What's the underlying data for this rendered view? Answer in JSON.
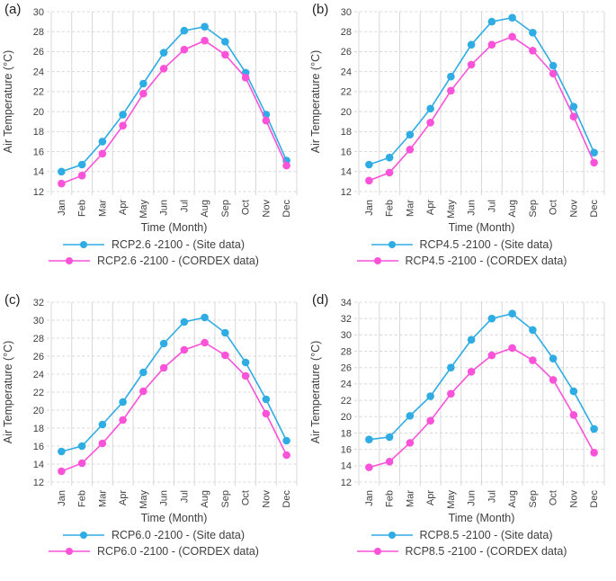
{
  "figure": {
    "xlabel": "Time (Month)",
    "ylabel": "Air Temperature (°C)",
    "months": [
      "Jan",
      "Feb",
      "Mar",
      "Apr",
      "May",
      "Jun",
      "Jul",
      "Aug",
      "Sep",
      "Oct",
      "Nov",
      "Dec"
    ],
    "colors": {
      "site_series": "#2EACE3",
      "cordex_series": "#FA52D9",
      "gridline": "#D8D8D8",
      "text": "#3F3F3F"
    }
  },
  "chart_data": [
    {
      "type": "line",
      "panel_label": "(a)",
      "xlabel": "Time (Month)",
      "ylabel": "Air Temperature (°C)",
      "categories": [
        "Jan",
        "Feb",
        "Mar",
        "Apr",
        "May",
        "Jun",
        "Jul",
        "Aug",
        "Sep",
        "Oct",
        "Nov",
        "Dec"
      ],
      "ylim": [
        12,
        30
      ],
      "ytick_step": 2,
      "grid": true,
      "legend_position": "bottom",
      "series": [
        {
          "name": "RCP2.6 -2100 - (Site data)",
          "color_key": "site_series",
          "color": "#2EACE3",
          "values": [
            14.0,
            14.7,
            17.0,
            19.7,
            22.8,
            25.9,
            28.1,
            28.5,
            27.0,
            23.9,
            19.7,
            15.1
          ]
        },
        {
          "name": "RCP2.6 -2100 - (CORDEX data)",
          "color_key": "cordex_series",
          "color": "#FA52D9",
          "values": [
            12.8,
            13.6,
            15.8,
            18.6,
            21.8,
            24.3,
            26.2,
            27.1,
            25.7,
            23.4,
            19.1,
            14.6
          ]
        }
      ]
    },
    {
      "type": "line",
      "panel_label": "(b)",
      "xlabel": "Time (Month)",
      "ylabel": "Air Temperature (°C)",
      "categories": [
        "Jan",
        "Feb",
        "Mar",
        "Apr",
        "May",
        "Jun",
        "Jul",
        "Aug",
        "Sep",
        "Oct",
        "Nov",
        "Dec"
      ],
      "ylim": [
        12,
        30
      ],
      "ytick_step": 2,
      "grid": true,
      "legend_position": "bottom",
      "series": [
        {
          "name": "RCP4.5 -2100 - (Site data)",
          "color_key": "site_series",
          "color": "#2EACE3",
          "values": [
            14.7,
            15.4,
            17.7,
            20.3,
            23.5,
            26.7,
            29.0,
            29.4,
            27.9,
            24.6,
            20.5,
            15.9
          ]
        },
        {
          "name": "RCP4.5 -2100 - (CORDEX data)",
          "color_key": "cordex_series",
          "color": "#FA52D9",
          "values": [
            13.1,
            13.9,
            16.2,
            18.9,
            22.1,
            24.7,
            26.7,
            27.5,
            26.1,
            23.8,
            19.5,
            14.9
          ]
        }
      ]
    },
    {
      "type": "line",
      "panel_label": "(c)",
      "xlabel": "Time (Month)",
      "ylabel": "Air Temperature (°C)",
      "categories": [
        "Jan",
        "Feb",
        "Mar",
        "Apr",
        "May",
        "Jun",
        "Jul",
        "Aug",
        "Sep",
        "Oct",
        "Nov",
        "Dec"
      ],
      "ylim": [
        12,
        32
      ],
      "ytick_step": 2,
      "grid": true,
      "legend_position": "bottom",
      "series": [
        {
          "name": "RCP6.0 -2100 - (Site data)",
          "color_key": "site_series",
          "color": "#2EACE3",
          "values": [
            15.4,
            16.0,
            18.4,
            20.9,
            24.2,
            27.4,
            29.8,
            30.3,
            28.6,
            25.3,
            21.2,
            16.6
          ]
        },
        {
          "name": "RCP6.0 -2100 - (CORDEX data)",
          "color_key": "cordex_series",
          "color": "#FA52D9",
          "values": [
            13.2,
            14.1,
            16.3,
            18.9,
            22.1,
            24.7,
            26.7,
            27.5,
            26.1,
            23.8,
            19.6,
            15.0
          ]
        }
      ]
    },
    {
      "type": "line",
      "panel_label": "(d)",
      "xlabel": "Time (Month)",
      "ylabel": "Air Temperature (°C)",
      "categories": [
        "Jan",
        "Feb",
        "Mar",
        "Apr",
        "May",
        "Jun",
        "Jul",
        "Aug",
        "Sep",
        "Oct",
        "Nov",
        "Dec"
      ],
      "ylim": [
        12,
        34
      ],
      "ytick_step": 2,
      "grid": true,
      "legend_position": "bottom",
      "series": [
        {
          "name": "RCP8.5 -2100 - (Site data)",
          "color_key": "site_series",
          "color": "#2EACE3",
          "values": [
            17.2,
            17.5,
            20.1,
            22.5,
            26.0,
            29.4,
            32.0,
            32.6,
            30.6,
            27.1,
            23.1,
            18.5
          ]
        },
        {
          "name": "RCP8.5 -2100 - (CORDEX data)",
          "color_key": "cordex_series",
          "color": "#FA52D9",
          "values": [
            13.8,
            14.5,
            16.8,
            19.5,
            22.8,
            25.5,
            27.5,
            28.4,
            26.9,
            24.5,
            20.2,
            15.6
          ]
        }
      ]
    }
  ]
}
